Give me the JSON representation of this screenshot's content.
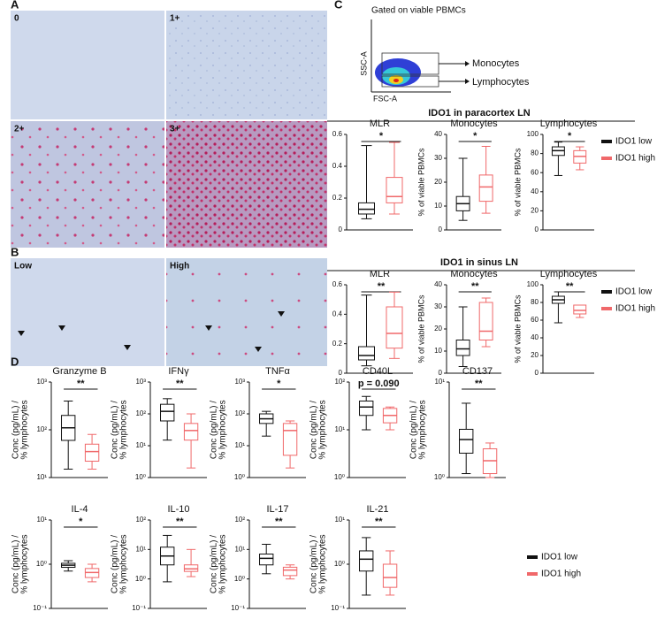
{
  "panels": {
    "a": "A",
    "b": "B",
    "c": "C",
    "d": "D"
  },
  "images_a": [
    "0",
    "1+",
    "2+",
    "3+"
  ],
  "images_b": [
    "Low",
    "High"
  ],
  "flow": {
    "title": "Gated on viable PBMCs",
    "xlabel": "FSC-A",
    "ylabel": "SSC-A",
    "gates": [
      "Monocytes",
      "Lymphocytes"
    ]
  },
  "sections": [
    "IDO1 in paracortex LN",
    "IDO1 in sinus LN"
  ],
  "legend": [
    {
      "name": "IDO1 low",
      "color": "#111111"
    },
    {
      "name": "IDO1 high",
      "color": "#f0686a"
    }
  ],
  "chart_data": [
    {
      "type": "box",
      "title": "MLR",
      "ylim": [
        0,
        0.6
      ],
      "yticks": [
        0,
        0.2,
        0.4,
        0.6
      ],
      "significance": "*",
      "boxes": [
        {
          "color": "#111111",
          "min": 0.07,
          "q1": 0.1,
          "median": 0.13,
          "q3": 0.17,
          "max": 0.53
        },
        {
          "color": "#f0686a",
          "min": 0.1,
          "q1": 0.17,
          "median": 0.21,
          "q3": 0.33,
          "max": 0.55
        }
      ]
    },
    {
      "type": "box",
      "title": "Monocytes",
      "ylabel": "% of viable PBMCs",
      "ylim": [
        0,
        40
      ],
      "yticks": [
        0,
        10,
        20,
        30,
        40
      ],
      "significance": "*",
      "boxes": [
        {
          "color": "#111111",
          "min": 4,
          "q1": 8,
          "median": 11,
          "q3": 14,
          "max": 30
        },
        {
          "color": "#f0686a",
          "min": 7,
          "q1": 12,
          "median": 18,
          "q3": 23,
          "max": 35
        }
      ]
    },
    {
      "type": "box",
      "title": "Lymphocytes",
      "ylabel": "% of viable PBMCs",
      "ylim": [
        0,
        100
      ],
      "yticks": [
        0,
        20,
        40,
        60,
        80,
        100
      ],
      "significance": "*",
      "boxes": [
        {
          "color": "#111111",
          "min": 57,
          "q1": 78,
          "median": 83,
          "q3": 87,
          "max": 92
        },
        {
          "color": "#f0686a",
          "min": 63,
          "q1": 70,
          "median": 77,
          "q3": 83,
          "max": 87
        }
      ]
    },
    {
      "type": "box",
      "title": "MLR",
      "ylim": [
        0,
        0.6
      ],
      "yticks": [
        0,
        0.2,
        0.4,
        0.6
      ],
      "significance": "**",
      "boxes": [
        {
          "color": "#111111",
          "min": 0.05,
          "q1": 0.09,
          "median": 0.12,
          "q3": 0.18,
          "max": 0.53
        },
        {
          "color": "#f0686a",
          "min": 0.1,
          "q1": 0.17,
          "median": 0.27,
          "q3": 0.45,
          "max": 0.55
        }
      ]
    },
    {
      "type": "box",
      "title": "Monocytes",
      "ylabel": "% of viable PBMCs",
      "ylim": [
        0,
        40
      ],
      "yticks": [
        0,
        10,
        20,
        30,
        40
      ],
      "significance": "**",
      "boxes": [
        {
          "color": "#111111",
          "min": 3,
          "q1": 8,
          "median": 11,
          "q3": 15,
          "max": 30
        },
        {
          "color": "#f0686a",
          "min": 12,
          "q1": 15,
          "median": 19,
          "q3": 32,
          "max": 34
        }
      ]
    },
    {
      "type": "box",
      "title": "Lymphocytes",
      "ylabel": "% of viable PBMCs",
      "ylim": [
        0,
        100
      ],
      "yticks": [
        0,
        20,
        40,
        60,
        80,
        100
      ],
      "significance": "**",
      "boxes": [
        {
          "color": "#111111",
          "min": 57,
          "q1": 79,
          "median": 83,
          "q3": 87,
          "max": 92
        },
        {
          "color": "#f0686a",
          "min": 63,
          "q1": 67,
          "median": 71,
          "q3": 77,
          "max": 77
        }
      ]
    },
    {
      "type": "box",
      "log": true,
      "title": "Granzyme B",
      "ylabel": [
        "Conc (pg/mL) /",
        "% lymphocytes"
      ],
      "ylim": [
        10,
        1000
      ],
      "yticks": [
        {
          "value": 10,
          "label": "10¹"
        },
        {
          "value": 100,
          "label": "10²"
        },
        {
          "value": 1000,
          "label": "10³"
        }
      ],
      "significance": "**",
      "boxes": [
        {
          "color": "#111111",
          "min": 15,
          "q1": 60,
          "median": 110,
          "q3": 200,
          "max": 400
        },
        {
          "color": "#f0686a",
          "min": 15,
          "q1": 22,
          "median": 35,
          "q3": 50,
          "max": 80
        }
      ]
    },
    {
      "type": "box",
      "log": true,
      "title": "IFNγ",
      "ylabel": [
        "Conc (pg/mL) /",
        "% lymphocytes"
      ],
      "ylim": [
        1,
        1000
      ],
      "yticks": [
        {
          "value": 1,
          "label": "10⁰"
        },
        {
          "value": 10,
          "label": "10¹"
        },
        {
          "value": 100,
          "label": "10²"
        },
        {
          "value": 1000,
          "label": "10³"
        }
      ],
      "significance": "**",
      "boxes": [
        {
          "color": "#111111",
          "min": 15,
          "q1": 60,
          "median": 120,
          "q3": 200,
          "max": 300
        },
        {
          "color": "#f0686a",
          "min": 2,
          "q1": 15,
          "median": 30,
          "q3": 50,
          "max": 100
        }
      ]
    },
    {
      "type": "box",
      "log": true,
      "title": "TNFα",
      "ylabel": [
        "Conc (pg/mL) /",
        "% lymphocytes"
      ],
      "ylim": [
        1,
        1000
      ],
      "yticks": [
        {
          "value": 1,
          "label": "10⁰"
        },
        {
          "value": 10,
          "label": "10¹"
        },
        {
          "value": 100,
          "label": "10²"
        },
        {
          "value": 1000,
          "label": "10³"
        }
      ],
      "significance": "*",
      "boxes": [
        {
          "color": "#111111",
          "min": 20,
          "q1": 50,
          "median": 70,
          "q3": 100,
          "max": 120
        },
        {
          "color": "#f0686a",
          "min": 2,
          "q1": 5,
          "median": 30,
          "q3": 50,
          "max": 60
        }
      ]
    },
    {
      "type": "box",
      "log": true,
      "title": "CD40L",
      "ylabel": [
        "Conc (pg/mL) /",
        "% lymphocytes"
      ],
      "ylim": [
        1,
        100
      ],
      "yticks": [
        {
          "value": 1,
          "label": "10⁰"
        },
        {
          "value": 10,
          "label": "10¹"
        },
        {
          "value": 100,
          "label": "10²"
        }
      ],
      "significance": "p = 0.090",
      "boxes": [
        {
          "color": "#111111",
          "min": 10,
          "q1": 20,
          "median": 30,
          "q3": 40,
          "max": 50
        },
        {
          "color": "#f0686a",
          "min": 10,
          "q1": 14,
          "median": 20,
          "q3": 28,
          "max": 30
        }
      ]
    },
    {
      "type": "box",
      "log": true,
      "title": "CD137",
      "ylabel": [
        "Conc (pg/mL) /",
        "% lymphocytes"
      ],
      "ylim": [
        1,
        10
      ],
      "yticks": [
        {
          "value": 1,
          "label": "10⁰"
        },
        {
          "value": 10,
          "label": "10¹"
        }
      ],
      "significance": "**",
      "boxes": [
        {
          "color": "#111111",
          "min": 1.1,
          "q1": 1.8,
          "median": 2.5,
          "q3": 3.2,
          "max": 6
        },
        {
          "color": "#f0686a",
          "min": 1,
          "q1": 1.1,
          "median": 1.5,
          "q3": 2,
          "max": 2.3
        }
      ]
    },
    {
      "type": "box",
      "log": true,
      "title": "IL-4",
      "ylabel": [
        "Conc (pg/mL) /",
        "% lymphocytes"
      ],
      "ylim": [
        0.1,
        10
      ],
      "yticks": [
        {
          "value": 0.1,
          "label": "10⁻¹"
        },
        {
          "value": 1,
          "label": "10⁰"
        },
        {
          "value": 10,
          "label": "10¹"
        }
      ],
      "significance": "*",
      "boxes": [
        {
          "color": "#111111",
          "min": 0.7,
          "q1": 0.85,
          "median": 0.95,
          "q3": 1.05,
          "max": 1.2
        },
        {
          "color": "#f0686a",
          "min": 0.4,
          "q1": 0.5,
          "median": 0.65,
          "q3": 0.8,
          "max": 1
        }
      ]
    },
    {
      "type": "box",
      "log": true,
      "title": "IL-10",
      "ylabel": [
        "Conc (pg/mL) /",
        "% lymphocytes"
      ],
      "ylim": [
        0.1,
        100
      ],
      "yticks": [
        {
          "value": 0.1,
          "label": "10⁻¹"
        },
        {
          "value": 1,
          "label": "10⁰"
        },
        {
          "value": 10,
          "label": "10¹"
        },
        {
          "value": 100,
          "label": "10²"
        }
      ],
      "significance": "**",
      "boxes": [
        {
          "color": "#111111",
          "min": 0.8,
          "q1": 3,
          "median": 6,
          "q3": 12,
          "max": 30
        },
        {
          "color": "#f0686a",
          "min": 1.2,
          "q1": 1.8,
          "median": 2.2,
          "q3": 3,
          "max": 10
        }
      ]
    },
    {
      "type": "box",
      "log": true,
      "title": "IL-17",
      "ylabel": [
        "Conc (pg/mL) /",
        "% lymphocytes"
      ],
      "ylim": [
        0.1,
        100
      ],
      "yticks": [
        {
          "value": 0.1,
          "label": "10⁻¹"
        },
        {
          "value": 1,
          "label": "10⁰"
        },
        {
          "value": 10,
          "label": "10¹"
        },
        {
          "value": 100,
          "label": "10²"
        }
      ],
      "significance": "**",
      "boxes": [
        {
          "color": "#111111",
          "min": 1.5,
          "q1": 3,
          "median": 5,
          "q3": 7,
          "max": 15
        },
        {
          "color": "#f0686a",
          "min": 1,
          "q1": 1.3,
          "median": 2,
          "q3": 2.5,
          "max": 3
        }
      ]
    },
    {
      "type": "box",
      "log": true,
      "title": "IL-21",
      "ylabel": [
        "Conc (pg/mL) /",
        "% lymphocytes"
      ],
      "ylim": [
        0.1,
        10
      ],
      "yticks": [
        {
          "value": 0.1,
          "label": "10⁻¹"
        },
        {
          "value": 1,
          "label": "10⁰"
        },
        {
          "value": 10,
          "label": "10¹"
        }
      ],
      "significance": "**",
      "boxes": [
        {
          "color": "#111111",
          "min": 0.2,
          "q1": 0.7,
          "median": 1.3,
          "q3": 2,
          "max": 4
        },
        {
          "color": "#f0686a",
          "min": 0.2,
          "q1": 0.3,
          "median": 0.5,
          "q3": 1,
          "max": 2
        }
      ]
    }
  ]
}
